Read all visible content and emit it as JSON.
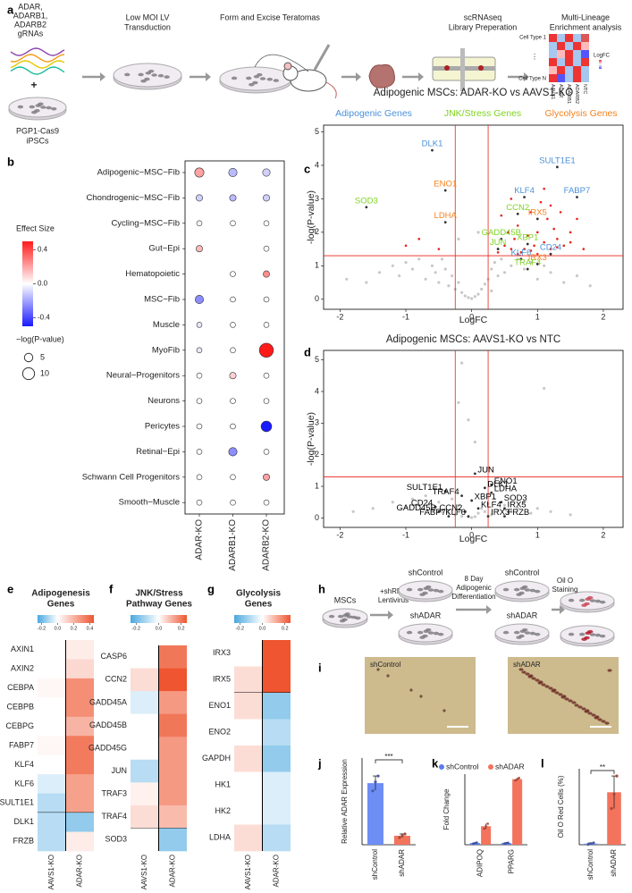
{
  "panel_labels": [
    "a",
    "b",
    "c",
    "d",
    "e",
    "f",
    "g",
    "h",
    "i",
    "j",
    "k",
    "l"
  ],
  "schematic_a": {
    "grnas": [
      "ADAR,",
      "ADARB1,",
      "ADARB2",
      "gRNAs"
    ],
    "plus": "+",
    "cells": [
      "PGP1-Cas9",
      "iPSCs"
    ],
    "steps": [
      [
        "Low MOI LV",
        "Transduction"
      ],
      [
        "Form and Excise Teratomas"
      ],
      [
        "scRNAseq",
        "Library Preperation"
      ],
      [
        "Multi-Lineage",
        "Enrichment analysis"
      ]
    ],
    "heatmap_rows": [
      "Cell Type 1",
      "Cell Type N"
    ],
    "heatmap_cols": [
      "AAVS1",
      "ADAR",
      "ADARB1",
      "ADARB2",
      "NTC"
    ],
    "heatmap_legend": "LogFC"
  },
  "schematic_h": {
    "start": "MSCs",
    "step1": [
      "+shRNA",
      "Lentivirus"
    ],
    "groups1": [
      "shControl",
      "shADAR"
    ],
    "step2": [
      "8 Day",
      "Adipogenic",
      "Differentiation"
    ],
    "groups2": [
      "shControl",
      "shADAR"
    ],
    "step3": [
      "Oil O",
      "Staining"
    ]
  },
  "panel_i": {
    "labels": [
      "shControl",
      "shADAR"
    ]
  },
  "chart_data": [
    {
      "type": "dot",
      "categories": [
        "Adipogenic−MSC−Fib",
        "Chondrogenic−MSC−Fib",
        "Cycling−MSC−Fib",
        "Gut−Epi",
        "Hematopoietic",
        "MSC−Fib",
        "Muscle",
        "MyoFib",
        "Neural−Progenitors",
        "Neurons",
        "Pericytes",
        "Retinal−Epi",
        "Schwann Cell Progenitors",
        "Smooth−Muscle"
      ],
      "columns": [
        "ADAR-KO",
        "ADARB1-KO",
        "ADARB2-KO"
      ],
      "effect": [
        [
          0.2,
          -0.15,
          -0.1
        ],
        [
          -0.1,
          -0.15,
          -0.1
        ],
        [
          -0.02,
          0,
          0
        ],
        [
          0.15,
          null,
          0
        ],
        [
          null,
          0,
          0.25
        ],
        [
          -0.25,
          0,
          0
        ],
        [
          -0.05,
          0,
          0
        ],
        [
          -0.05,
          0,
          0.5
        ],
        [
          0,
          0.1,
          0
        ],
        [
          0,
          0,
          0
        ],
        [
          0,
          0,
          -0.6
        ],
        [
          0,
          -0.25,
          0
        ],
        [
          0,
          0,
          0.2
        ],
        [
          0,
          0,
          0
        ]
      ],
      "size": [
        [
          6,
          5,
          4
        ],
        [
          3,
          3,
          3
        ],
        [
          2,
          2,
          2
        ],
        [
          3,
          null,
          2
        ],
        [
          null,
          2,
          3
        ],
        [
          5,
          2,
          2
        ],
        [
          2,
          2,
          2
        ],
        [
          2,
          2,
          14
        ],
        [
          2,
          3,
          2
        ],
        [
          2,
          2,
          2
        ],
        [
          2,
          2,
          8
        ],
        [
          2,
          5,
          2
        ],
        [
          2,
          2,
          3
        ],
        [
          2,
          2,
          2
        ]
      ],
      "colors": [
        "#1a1aff",
        "#ffffff",
        "#ff1a1a"
      ],
      "clim": [
        -0.5,
        0.5
      ],
      "colorbar": {
        "title": "Effect Size",
        "ticks": [
          0.4,
          {
            "value": 0,
            "label": "0.0"
          },
          -0.4
        ]
      },
      "size_legend": {
        "title": "−log(P-value)",
        "values": [
          5,
          10
        ]
      }
    },
    {
      "type": "volcano",
      "title": "Adipogenic MSCs: ADAR-KO vs AAVS1-KO",
      "xlabel": "LogFC",
      "ylabel": "-log(P-value)",
      "xlim": [
        -2.25,
        2.3
      ],
      "ylim": [
        -0.3,
        5.2
      ],
      "xticks": [
        -2,
        -1,
        0,
        1,
        2
      ],
      "yticks": [
        0,
        1,
        2,
        3,
        4,
        5
      ],
      "thresholds": {
        "x": [
          -0.25,
          0.25
        ],
        "y": 1.3,
        "color": "#e8231b"
      },
      "points": {
        "color": "#c8c8c8",
        "x": [
          -1.9,
          -1.6,
          -1.4,
          -1.2,
          -1.1,
          -1.0,
          -0.9,
          -0.8,
          -0.7,
          -0.6,
          -0.55,
          -0.5,
          -0.45,
          -0.4,
          -0.35,
          -0.3,
          -0.25,
          -0.2,
          -0.15,
          -0.1,
          -0.05,
          0,
          0.05,
          0.1,
          0.15,
          0.2,
          0.25,
          0.3,
          0.35,
          0.4,
          0.45,
          0.5,
          0.6,
          0.7,
          0.8,
          0.9,
          1.0,
          1.1,
          1.2,
          1.4,
          1.6,
          1.8,
          -0.2,
          0.1,
          0.3
        ],
        "y": [
          0.6,
          0.5,
          0.8,
          1.0,
          0.7,
          1.1,
          0.9,
          1.2,
          0.6,
          1.0,
          0.8,
          0.5,
          1.2,
          0.9,
          0.4,
          0.7,
          0.3,
          0.5,
          0.2,
          0.1,
          0.05,
          0.02,
          0.08,
          0.15,
          0.3,
          0.45,
          0.6,
          0.9,
          1.1,
          0.7,
          1.2,
          0.8,
          1.0,
          1.2,
          0.9,
          1.1,
          0.6,
          1.0,
          0.8,
          0.5,
          0.7,
          0.4,
          1.8,
          2.0,
          0.25
        ]
      },
      "sig_points": {
        "color": "#e8231b",
        "x": [
          0.4,
          0.5,
          0.55,
          0.6,
          0.65,
          0.7,
          0.8,
          0.85,
          0.9,
          0.95,
          1.0,
          1.05,
          1.1,
          1.15,
          1.2,
          1.25,
          1.3,
          1.35,
          1.4,
          1.5,
          1.6,
          1.7,
          0.45,
          0.6,
          0.75,
          0.9,
          1.1,
          1.3,
          1.5,
          -0.5,
          -0.8,
          -1.0,
          1.0,
          0.7,
          1.2
        ],
        "y": [
          1.4,
          1.6,
          2.0,
          1.5,
          1.8,
          2.2,
          1.5,
          1.9,
          2.6,
          1.6,
          2.0,
          2.9,
          1.7,
          2.4,
          1.5,
          2.1,
          1.8,
          2.6,
          1.6,
          2.0,
          2.4,
          1.5,
          2.5,
          3.0,
          1.4,
          1.45,
          3.3,
          1.55,
          1.7,
          1.5,
          1.8,
          1.6,
          1.35,
          1.35,
          2.8
        ]
      },
      "groups": [
        {
          "name": "Adipogenic Genes",
          "color": "#4a90d9",
          "genes": [
            {
              "label": "DLK1",
              "x": -0.6,
              "y": 4.45
            },
            {
              "label": "SULT1E1",
              "x": 1.3,
              "y": 3.95
            },
            {
              "label": "FABP7",
              "x": 1.6,
              "y": 3.05
            },
            {
              "label": "KLF4",
              "x": 0.8,
              "y": 3.05
            },
            {
              "label": "CD24",
              "x": 1.2,
              "y": 1.35
            },
            {
              "label": "KLF6",
              "x": 0.75,
              "y": 1.2
            }
          ]
        },
        {
          "name": "JNK/Stress Genes",
          "color": "#7ed321",
          "genes": [
            {
              "label": "SOD3",
              "x": -1.6,
              "y": 2.75
            },
            {
              "label": "CCN2",
              "x": 0.7,
              "y": 2.55
            },
            {
              "label": "GADD45B",
              "x": 0.45,
              "y": 1.8
            },
            {
              "label": "XBP1",
              "x": 0.85,
              "y": 1.65
            },
            {
              "label": "JUN",
              "x": 0.4,
              "y": 1.5
            },
            {
              "label": "TRAF4",
              "x": 0.85,
              "y": 0.9
            }
          ]
        },
        {
          "name": "Glycolysis Genes",
          "color": "#f5821f",
          "genes": [
            {
              "label": "ENO1",
              "x": -0.4,
              "y": 3.25
            },
            {
              "label": "IRX5",
              "x": 1.0,
              "y": 2.4
            },
            {
              "label": "LDHA",
              "x": -0.4,
              "y": 2.3
            },
            {
              "label": "IRX3",
              "x": 1.0,
              "y": 1.05
            }
          ]
        }
      ]
    },
    {
      "type": "volcano",
      "title": "Adipogenic MSCs: AAVS1-KO vs NTC",
      "xlabel": "LogFC",
      "ylabel": "-log(P-value)",
      "xlim": [
        -2.25,
        2.3
      ],
      "ylim": [
        -0.3,
        5.3
      ],
      "xticks": [
        -2,
        -1,
        0,
        1,
        2
      ],
      "yticks": [
        0,
        1,
        2,
        3,
        4,
        5
      ],
      "thresholds": {
        "x": [
          -0.25,
          0.25
        ],
        "y": 1.3,
        "color": "#e8231b"
      },
      "points": {
        "color": "#c8c8c8",
        "x": [
          -1.8,
          -1.5,
          -1.2,
          -1.0,
          -0.9,
          -0.8,
          -0.7,
          -0.6,
          -0.5,
          -0.45,
          -0.4,
          -0.35,
          -0.3,
          -0.25,
          -0.2,
          -0.15,
          -0.1,
          -0.05,
          0,
          0.05,
          0.1,
          0.15,
          0.2,
          0.25,
          0.3,
          0.35,
          0.4,
          0.5,
          0.6,
          0.7,
          0.8,
          0.9,
          1.0,
          1.2,
          1.5,
          -0.15,
          -0.2,
          1.1,
          -0.05,
          0.05
        ],
        "y": [
          0.2,
          0.3,
          0.5,
          0.35,
          0.6,
          0.4,
          0.7,
          0.3,
          0.5,
          0.2,
          0.8,
          0.15,
          0.6,
          0.1,
          0.4,
          0.05,
          0.2,
          0.03,
          0.01,
          0.04,
          0.15,
          0.3,
          0.2,
          0.45,
          0.1,
          0.6,
          0.25,
          0.4,
          0.2,
          0.3,
          0.5,
          0.15,
          0.3,
          0.2,
          0.1,
          4.9,
          3.65,
          4.1,
          3.1,
          2.4
        ]
      },
      "gene_color": "#000000",
      "genes": [
        {
          "label": "JUN",
          "x": 0.05,
          "y": 1.4
        },
        {
          "label": "ENO1",
          "x": 0.3,
          "y": 1.05
        },
        {
          "label": "DLK1",
          "x": 0.2,
          "y": 0.95
        },
        {
          "label": "LDHA",
          "x": 0.3,
          "y": 0.8
        },
        {
          "label": "SULT1E1",
          "x": -0.4,
          "y": 0.85
        },
        {
          "label": "TRAF4",
          "x": -0.15,
          "y": 0.7
        },
        {
          "label": "XBP1",
          "x": 0.0,
          "y": 0.55
        },
        {
          "label": "SOD3",
          "x": 0.45,
          "y": 0.5
        },
        {
          "label": "CD24",
          "x": -0.55,
          "y": 0.35
        },
        {
          "label": "KLF4",
          "x": 0.1,
          "y": 0.3
        },
        {
          "label": "IRX5",
          "x": 0.5,
          "y": 0.3
        },
        {
          "label": "GADD45B",
          "x": -0.5,
          "y": 0.2
        },
        {
          "label": "CCN2",
          "x": -0.1,
          "y": 0.2
        },
        {
          "label": "FRZB",
          "x": 0.5,
          "y": 0.05
        },
        {
          "label": "FABP7",
          "x": -0.35,
          "y": 0.05
        },
        {
          "label": "KLF6",
          "x": -0.05,
          "y": 0.05
        },
        {
          "label": "IRX3",
          "x": 0.25,
          "y": 0.05
        }
      ]
    },
    {
      "type": "heatmap",
      "title": [
        "Adipogenesis",
        "Genes"
      ],
      "columns": [
        "AAVS1-KO",
        "ADAR-KO"
      ],
      "colors": [
        "#4aa8e0",
        "#ffffff",
        "#ee5530"
      ],
      "clim": [
        -0.25,
        0.45
      ],
      "colorbar_ticks": [
        -0.2,
        {
          "value": 0,
          "label": "0.0"
        },
        0.2,
        0.4
      ],
      "groups": [
        {
          "rows": [
            "AXIN1",
            "AXIN2",
            "CEBPA",
            "CEBPB",
            "CEBPG",
            "FABP7",
            "KLF4",
            "KLF6",
            "SULT1E1"
          ],
          "values": [
            [
              0.0,
              0.05
            ],
            [
              0.0,
              0.1
            ],
            [
              0.02,
              0.3
            ],
            [
              0.0,
              0.3
            ],
            [
              0.0,
              0.2
            ],
            [
              0.02,
              0.35
            ],
            [
              0.0,
              0.35
            ],
            [
              -0.05,
              0.25
            ],
            [
              -0.1,
              0.25
            ]
          ]
        },
        {
          "rows": [
            "DLK1",
            "FRZB"
          ],
          "values": [
            [
              -0.1,
              -0.15
            ],
            [
              -0.1,
              0.05
            ]
          ]
        }
      ]
    },
    {
      "type": "heatmap",
      "title": [
        "JNK/Stress",
        "Pathway Genes"
      ],
      "columns": [
        "AAVS1-KO",
        "ADAR-KO"
      ],
      "colors": [
        "#4aa8e0",
        "#ffffff",
        "#ee5530"
      ],
      "clim": [
        -0.25,
        0.25
      ],
      "colorbar_ticks": [
        -0.2,
        {
          "value": 0,
          "label": "0.0"
        },
        0.2
      ],
      "groups": [
        {
          "rows": [
            "CASP6",
            "CCN2",
            "GADD45A",
            "GADD45B",
            "GADD45G",
            "JUN",
            "TRAF3",
            "TRAF4"
          ],
          "values": [
            [
              0.0,
              0.2
            ],
            [
              0.05,
              0.25
            ],
            [
              -0.05,
              0.15
            ],
            [
              0.0,
              0.2
            ],
            [
              0.0,
              0.15
            ],
            [
              -0.1,
              0.15
            ],
            [
              0.02,
              0.15
            ],
            [
              0.05,
              0.1
            ]
          ]
        },
        {
          "rows": [
            "SOD3"
          ],
          "values": [
            [
              0.0,
              -0.15
            ]
          ]
        }
      ]
    },
    {
      "type": "heatmap",
      "title": [
        "Glycolysis",
        "Genes"
      ],
      "columns": [
        "AAVS1-KO",
        "ADAR-KO"
      ],
      "colors": [
        "#4aa8e0",
        "#ffffff",
        "#ee5530"
      ],
      "clim": [
        -0.25,
        0.25
      ],
      "colorbar_ticks": [
        -0.2,
        {
          "value": 0,
          "label": "0.0"
        },
        0.2
      ],
      "groups": [
        {
          "rows": [
            "IRX3",
            "IRX5"
          ],
          "values": [
            [
              0.0,
              0.25
            ],
            [
              0.05,
              0.25
            ]
          ]
        },
        {
          "rows": [
            "ENO1",
            "ENO2",
            "GAPDH",
            "HK1",
            "HK2",
            "LDHA"
          ],
          "values": [
            [
              0.05,
              -0.15
            ],
            [
              0.0,
              -0.1
            ],
            [
              0.05,
              -0.15
            ],
            [
              0.0,
              -0.05
            ],
            [
              0.0,
              -0.05
            ],
            [
              0.05,
              -0.1
            ]
          ]
        }
      ]
    },
    {
      "type": "bar",
      "ylabel": "Relative ADAR Expression",
      "categories": [
        "shControl",
        "shADAR"
      ],
      "values": [
        1.03,
        0.15
      ],
      "errors": [
        0.12,
        0.03
      ],
      "points": [
        [
          0.9,
          1.05,
          1.15
        ],
        [
          0.12,
          0.15,
          0.18
        ]
      ],
      "colors": [
        "#6e8ef5",
        "#f4735d"
      ],
      "significance": "***",
      "ylim": [
        0,
        1.45
      ]
    },
    {
      "type": "grouped_bar",
      "ylabel": "Fold Change",
      "categories": [
        "ADIPOQ",
        "PPARG"
      ],
      "ylim": [
        0,
        42
      ],
      "legend": "top",
      "series": [
        {
          "name": "shControl",
          "color": "#5b7bf0",
          "values": [
            1,
            1
          ],
          "errors": [
            0.3,
            0.2
          ],
          "points": [
            [
              0.7,
              1,
              1.3
            ],
            [
              0.8,
              1,
              1.2
            ]
          ]
        },
        {
          "name": "shADAR",
          "color": "#f4735d",
          "values": [
            11,
            39
          ],
          "errors": [
            1.5,
            0.8
          ],
          "points": [
            [
              9.5,
              11,
              12.5
            ],
            [
              38.3,
              39,
              39.7
            ]
          ]
        }
      ]
    },
    {
      "type": "bar",
      "ylabel": "Oil O Red Cells (%)",
      "categories": [
        "shControl",
        "shADAR"
      ],
      "values": [
        0.3,
        14.5
      ],
      "errors": [
        0.2,
        4.5
      ],
      "points": [
        [
          0.1,
          0.3,
          0.5
        ],
        [
          10,
          14,
          19
        ]
      ],
      "colors": [
        "#6e8ef5",
        "#f4735d"
      ],
      "significance": "**",
      "ylim": [
        0,
        21
      ]
    }
  ]
}
